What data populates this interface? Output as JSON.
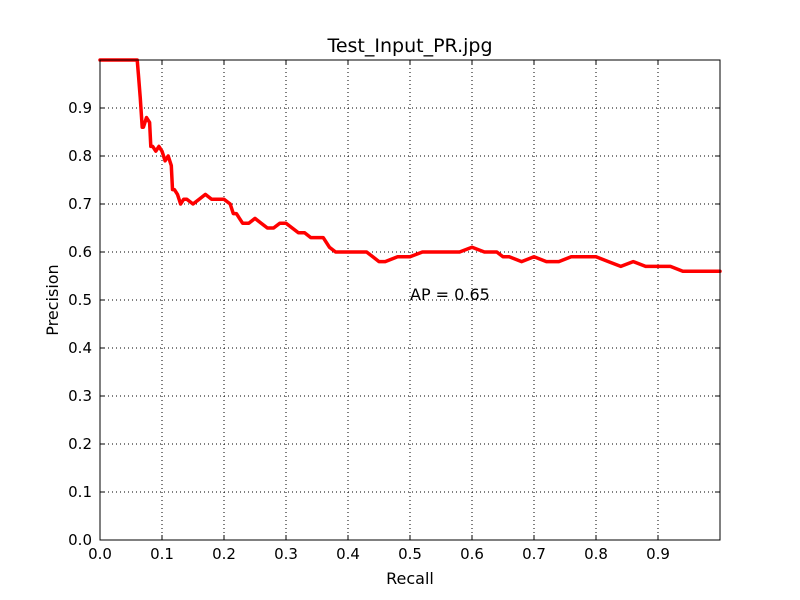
{
  "chart_data": {
    "type": "line",
    "title": "Test_Input_PR.jpg",
    "xlabel": "Recall",
    "ylabel": "Precision",
    "xlim": [
      0,
      1
    ],
    "ylim": [
      0,
      1
    ],
    "grid": true,
    "grid_style": "dotted",
    "x_ticks": [
      0.0,
      0.1,
      0.2,
      0.3,
      0.4,
      0.5,
      0.6,
      0.7,
      0.8,
      0.9
    ],
    "x_tick_labels": [
      "0.0",
      "0.1",
      "0.2",
      "0.3",
      "0.4",
      "0.5",
      "0.6",
      "0.7",
      "0.8",
      "0.9"
    ],
    "y_ticks": [
      0.0,
      0.1,
      0.2,
      0.3,
      0.4,
      0.5,
      0.6,
      0.7,
      0.8,
      0.9
    ],
    "y_tick_labels": [
      "0.0",
      "0.1",
      "0.2",
      "0.3",
      "0.4",
      "0.5",
      "0.6",
      "0.7",
      "0.8",
      "0.9"
    ],
    "annotation": {
      "text": "AP = 0.65",
      "x": 0.5,
      "y": 0.5
    },
    "series": [
      {
        "color": "#ff0000",
        "x": [
          0.0,
          0.06,
          0.062,
          0.065,
          0.068,
          0.07,
          0.075,
          0.08,
          0.082,
          0.085,
          0.09,
          0.095,
          0.1,
          0.105,
          0.11,
          0.115,
          0.117,
          0.12,
          0.125,
          0.13,
          0.135,
          0.14,
          0.15,
          0.16,
          0.17,
          0.18,
          0.19,
          0.2,
          0.21,
          0.215,
          0.22,
          0.225,
          0.23,
          0.24,
          0.25,
          0.26,
          0.27,
          0.28,
          0.29,
          0.3,
          0.31,
          0.32,
          0.33,
          0.34,
          0.35,
          0.36,
          0.37,
          0.38,
          0.39,
          0.4,
          0.41,
          0.42,
          0.43,
          0.44,
          0.45,
          0.46,
          0.48,
          0.5,
          0.52,
          0.54,
          0.56,
          0.58,
          0.6,
          0.62,
          0.64,
          0.65,
          0.66,
          0.68,
          0.7,
          0.72,
          0.74,
          0.76,
          0.78,
          0.8,
          0.82,
          0.84,
          0.86,
          0.88,
          0.9,
          0.92,
          0.94,
          0.96,
          0.98,
          1.0
        ],
        "y": [
          1.0,
          1.0,
          0.97,
          0.92,
          0.86,
          0.86,
          0.88,
          0.87,
          0.82,
          0.82,
          0.81,
          0.82,
          0.81,
          0.79,
          0.8,
          0.78,
          0.73,
          0.73,
          0.72,
          0.7,
          0.71,
          0.71,
          0.7,
          0.71,
          0.72,
          0.71,
          0.71,
          0.71,
          0.7,
          0.68,
          0.68,
          0.67,
          0.66,
          0.66,
          0.67,
          0.66,
          0.65,
          0.65,
          0.66,
          0.66,
          0.65,
          0.64,
          0.64,
          0.63,
          0.63,
          0.63,
          0.61,
          0.6,
          0.6,
          0.6,
          0.6,
          0.6,
          0.6,
          0.59,
          0.58,
          0.58,
          0.59,
          0.59,
          0.6,
          0.6,
          0.6,
          0.6,
          0.61,
          0.6,
          0.6,
          0.59,
          0.59,
          0.58,
          0.59,
          0.58,
          0.58,
          0.59,
          0.59,
          0.59,
          0.58,
          0.57,
          0.58,
          0.57,
          0.57,
          0.57,
          0.56,
          0.56,
          0.56,
          0.56
        ]
      }
    ]
  }
}
